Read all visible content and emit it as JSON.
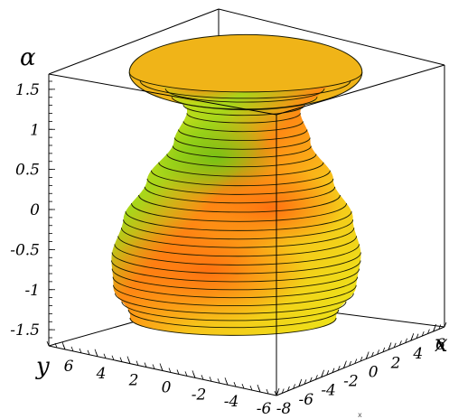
{
  "chart_data": {
    "type": "surface3d",
    "title": "",
    "surface": "surface of revolution about the vertical axis (hourglass / vase shape)",
    "contour_rings": 30,
    "colors": {
      "base": "#ecea18",
      "orange_region": "#ff7a12",
      "green_region": "#7ec81a",
      "contour": "#1a1a00",
      "box": "#000000"
    },
    "axes": {
      "x": {
        "label": "x",
        "ticks": [
          "-8",
          "-6",
          "-4",
          "-2",
          "0",
          "2",
          "4",
          "6"
        ],
        "range": [
          -8,
          7
        ]
      },
      "y": {
        "label": "y",
        "ticks": [
          "6",
          "4",
          "2",
          "0",
          "-2",
          "-4",
          "-6"
        ],
        "range": [
          -7,
          7
        ]
      },
      "z": {
        "label": "α",
        "ticks": [
          "1.5",
          "1",
          "0.5",
          "0",
          "-0.5",
          "-1",
          "-1.5"
        ],
        "range": [
          -1.6,
          1.6
        ]
      }
    },
    "radius_profile": [
      {
        "z": -1.57,
        "r": 6.2
      },
      {
        "z": -1.2,
        "r": 7.3
      },
      {
        "z": -0.8,
        "r": 7.5
      },
      {
        "z": -0.3,
        "r": 6.9
      },
      {
        "z": 0.2,
        "r": 5.6
      },
      {
        "z": 0.7,
        "r": 4.1
      },
      {
        "z": 1.1,
        "r": 3.4
      },
      {
        "z": 1.35,
        "r": 4.6
      },
      {
        "z": 1.57,
        "r": 7.0
      }
    ],
    "extra_label": "x"
  }
}
